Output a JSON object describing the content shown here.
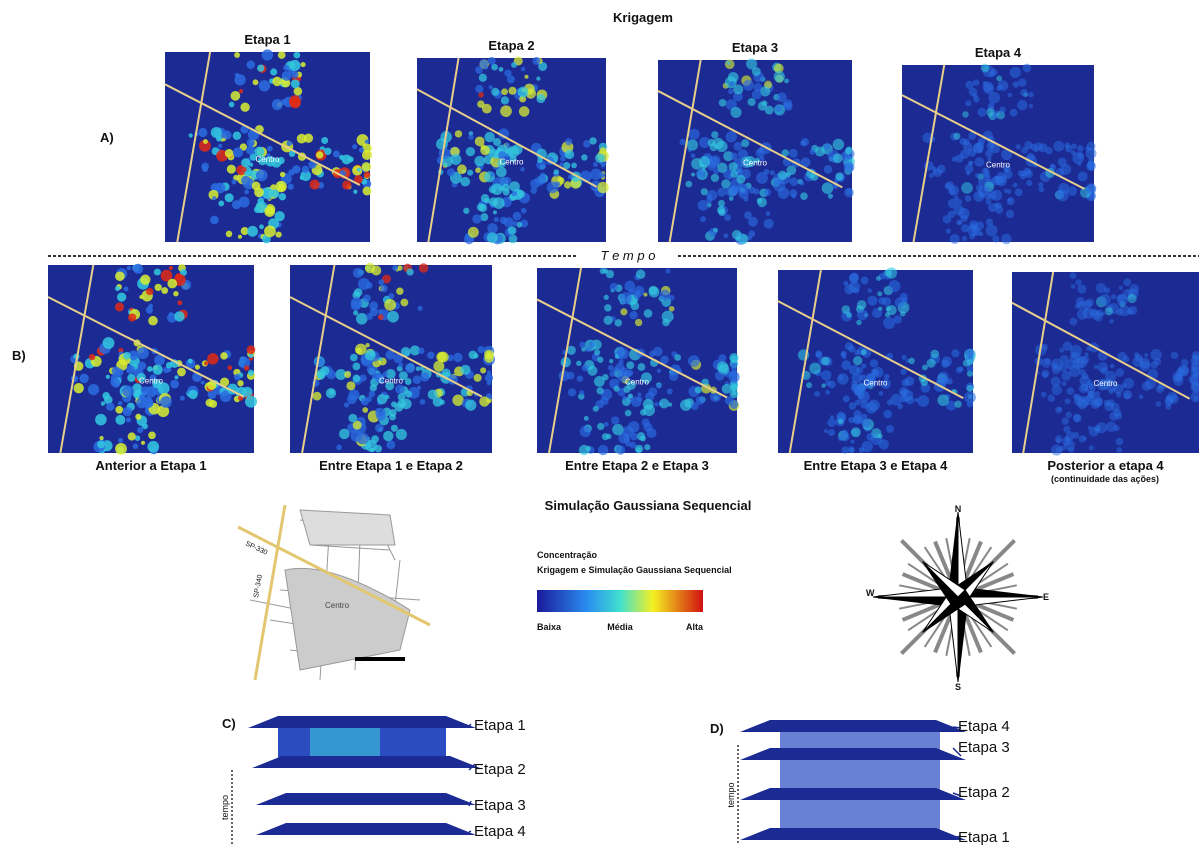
{
  "krigagem": {
    "title": "Krigagem",
    "row_label": "A)",
    "panels": [
      {
        "title": "Etapa 1",
        "center": "Centro"
      },
      {
        "title": "Etapa 2",
        "center": "Centro"
      },
      {
        "title": "Etapa 3",
        "center": "Centro"
      },
      {
        "title": "Etapa 4",
        "center": "Centro"
      }
    ]
  },
  "tempo_label": "T e m p o",
  "simulacao": {
    "row_label": "B)",
    "title": "Simulação Gaussiana Sequencial",
    "note": "(continuidade das ações)",
    "panels": [
      {
        "caption": "Anterior a Etapa 1",
        "center": "Centro"
      },
      {
        "caption": "Entre Etapa 1 e Etapa 2",
        "center": "Centro"
      },
      {
        "caption": "Entre Etapa 2 e Etapa 3",
        "center": "Centro"
      },
      {
        "caption": "Entre Etapa 3 e Etapa 4",
        "center": "Centro"
      },
      {
        "caption": "Posterior a etapa 4",
        "center": "Centro"
      }
    ]
  },
  "map": {
    "roads": [
      "SP-330",
      "SP-340"
    ],
    "center": "Centro"
  },
  "legend": {
    "title": "Concentração",
    "subtitle": "Krigagem e Simulação Gaussiana Sequencial",
    "low": "Baixa",
    "mid": "Média",
    "high": "Alta"
  },
  "compass": {
    "n": "N",
    "e": "E",
    "s": "S",
    "w": "W"
  },
  "stack_c": {
    "label": "C)",
    "axis": "tempo",
    "levels": [
      "Etapa 1",
      "Etapa 2",
      "Etapa 3",
      "Etapa 4"
    ]
  },
  "stack_d": {
    "label": "D)",
    "axis": "tempo",
    "levels": [
      "Etapa 4",
      "Etapa 3",
      "Etapa 2",
      "Etapa 1"
    ]
  }
}
